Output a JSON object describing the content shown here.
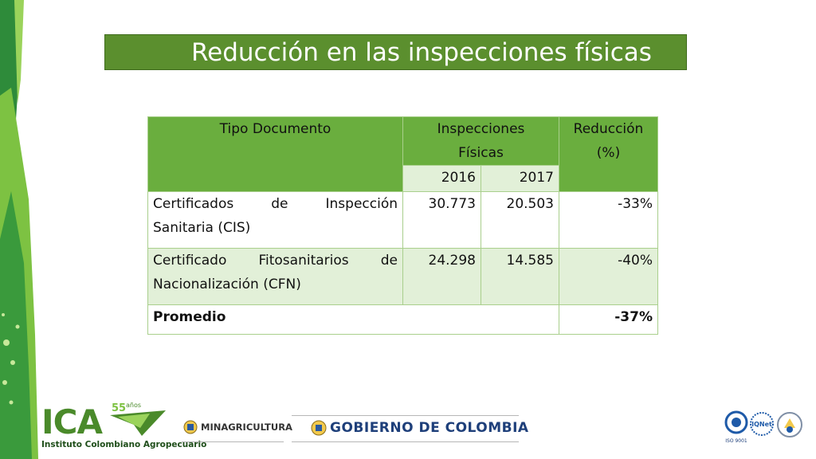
{
  "title": "Reducción en las inspecciones físicas",
  "table": {
    "headers": {
      "tipo": "Tipo Documento",
      "inspecciones_line1": "Inspecciones",
      "inspecciones_line2": "Físicas",
      "reduccion_line1": "Reducción",
      "reduccion_line2": "(%)",
      "year1": "2016",
      "year2": "2017"
    },
    "rows": [
      {
        "tipo_line1": "Certificados de Inspección",
        "tipo_line2": "Sanitaria (CIS)",
        "v2016": "30.773",
        "v2017": "20.503",
        "reduccion": "-33%"
      },
      {
        "tipo_line1": "Certificado Fitosanitarios de",
        "tipo_line2": "Nacionalización (CFN)",
        "v2016": "24.298",
        "v2017": "14.585",
        "reduccion": "-40%"
      }
    ],
    "promedio_label": "Promedio",
    "promedio_value": "-37%"
  },
  "footer": {
    "ica_name": "ICA",
    "ica_subtitle": "Instituto Colombiano Agropecuario",
    "anniversary_number": "55",
    "anniversary_word": "años",
    "ministry": "MINAGRICULTURA",
    "government": "GOBIERNO DE COLOMBIA",
    "cert_iso": "ISO 9001",
    "cert_iqnet": "IQNet"
  },
  "colors": {
    "title_bg": "#5b8f2e",
    "header_bg": "#6aae3e",
    "row_alt": "#e2f0d8",
    "border": "#a9cf8c"
  }
}
